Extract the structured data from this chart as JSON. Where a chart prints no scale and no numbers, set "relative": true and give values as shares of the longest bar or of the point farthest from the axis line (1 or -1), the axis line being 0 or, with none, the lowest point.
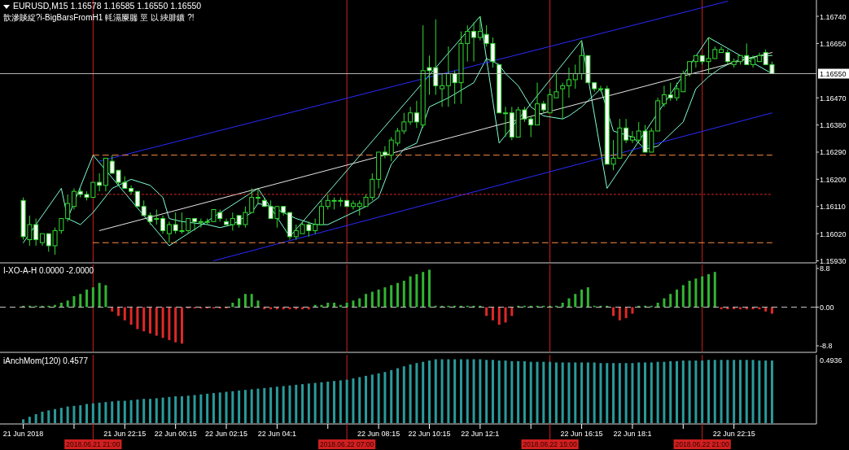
{
  "chart_data": [
    {
      "type": "candlestick",
      "title": "EURUSD,M15 1.16578 1.16585 1.16550 1.16550",
      "subtitle": "歆滲賧綻?i-BigBarsFromH1 軞滆屪腨 巠 以 綊腓鑛 ?!",
      "tick_labels": "y",
      "xlim": [
        "2018-06-21T17:20",
        "2018-06-23T01:30"
      ],
      "ylim": [
        1.15926,
        1.16794
      ],
      "yticks": [
        {
          "value": 1.1674,
          "label": "1.16740"
        },
        {
          "value": 1.1665,
          "label": "1.16650"
        },
        {
          "value": 1.1647,
          "label": "1.16470"
        },
        {
          "value": 1.1638,
          "label": "1.16380"
        },
        {
          "value": 1.1629,
          "label": "1.16290"
        },
        {
          "value": 1.162,
          "label": "1.16200"
        },
        {
          "value": 1.1611,
          "label": "1.16110"
        },
        {
          "value": 1.1602,
          "label": "1.16020"
        },
        {
          "value": 1.1593,
          "label": "1.15930"
        }
      ],
      "x": [
        "2018-06-21T18:15",
        "2018-06-21T18:30",
        "2018-06-21T18:45",
        "2018-06-21T19:00",
        "2018-06-21T19:15",
        "2018-06-21T19:30",
        "2018-06-21T19:45",
        "2018-06-21T20:00",
        "2018-06-21T20:15",
        "2018-06-21T20:30",
        "2018-06-21T20:45",
        "2018-06-21T21:00",
        "2018-06-21T21:15",
        "2018-06-21T21:30",
        "2018-06-21T21:45",
        "2018-06-21T22:00",
        "2018-06-21T22:15",
        "2018-06-21T22:30",
        "2018-06-21T22:45",
        "2018-06-21T23:00",
        "2018-06-21T23:15",
        "2018-06-21T23:30",
        "2018-06-21T23:45",
        "2018-06-22T00:00",
        "2018-06-22T00:15",
        "2018-06-22T00:30",
        "2018-06-22T00:45",
        "2018-06-22T01:00",
        "2018-06-22T01:15",
        "2018-06-22T01:30",
        "2018-06-22T01:45",
        "2018-06-22T02:00",
        "2018-06-22T02:15",
        "2018-06-22T02:30",
        "2018-06-22T02:45",
        "2018-06-22T03:00",
        "2018-06-22T03:15",
        "2018-06-22T03:30",
        "2018-06-22T03:45",
        "2018-06-22T04:00",
        "2018-06-22T04:15",
        "2018-06-22T04:30",
        "2018-06-22T04:45",
        "2018-06-22T05:00",
        "2018-06-22T05:15",
        "2018-06-22T05:30",
        "2018-06-22T05:45",
        "2018-06-22T06:00",
        "2018-06-22T06:15",
        "2018-06-22T06:30",
        "2018-06-22T06:45",
        "2018-06-22T07:00",
        "2018-06-22T07:15",
        "2018-06-22T07:30",
        "2018-06-22T07:45",
        "2018-06-22T08:00",
        "2018-06-22T08:15",
        "2018-06-22T08:30",
        "2018-06-22T08:45",
        "2018-06-22T09:00",
        "2018-06-22T09:15",
        "2018-06-22T09:30",
        "2018-06-22T09:45",
        "2018-06-22T10:00",
        "2018-06-22T10:15",
        "2018-06-22T10:30",
        "2018-06-22T10:45",
        "2018-06-22T11:00",
        "2018-06-22T11:15",
        "2018-06-22T11:30",
        "2018-06-22T11:45",
        "2018-06-22T12:00",
        "2018-06-22T12:15",
        "2018-06-22T12:30",
        "2018-06-22T12:45",
        "2018-06-22T13:00",
        "2018-06-22T13:15",
        "2018-06-22T13:30",
        "2018-06-22T13:45",
        "2018-06-22T14:00",
        "2018-06-22T14:15",
        "2018-06-22T14:30",
        "2018-06-22T14:45",
        "2018-06-22T15:00",
        "2018-06-22T15:15",
        "2018-06-22T15:30",
        "2018-06-22T15:45",
        "2018-06-22T16:00",
        "2018-06-22T16:15",
        "2018-06-22T16:30",
        "2018-06-22T16:45",
        "2018-06-22T17:00",
        "2018-06-22T17:15",
        "2018-06-22T17:30",
        "2018-06-22T17:45",
        "2018-06-22T18:00",
        "2018-06-22T18:15",
        "2018-06-22T18:30",
        "2018-06-22T18:45",
        "2018-06-22T19:00",
        "2018-06-22T19:15",
        "2018-06-22T19:30",
        "2018-06-22T19:45",
        "2018-06-22T20:00",
        "2018-06-22T20:15",
        "2018-06-22T20:30",
        "2018-06-22T20:45",
        "2018-06-22T21:00",
        "2018-06-22T21:15",
        "2018-06-22T21:30",
        "2018-06-22T21:45",
        "2018-06-22T22:00",
        "2018-06-22T22:15",
        "2018-06-22T22:30",
        "2018-06-22T22:45",
        "2018-06-22T23:00",
        "2018-06-22T23:15",
        "2018-06-22T23:30",
        "2018-06-22T23:45"
      ],
      "ohlc": [
        [
          1.1613,
          1.1614,
          1.16,
          1.1601
        ],
        [
          1.16,
          1.1608,
          1.1598,
          1.1605
        ],
        [
          1.1605,
          1.1607,
          1.1598,
          1.16
        ],
        [
          1.1599,
          1.1602,
          1.1598,
          1.1602
        ],
        [
          1.1602,
          1.1602,
          1.1596,
          1.1598
        ],
        [
          1.1598,
          1.1604,
          1.1595,
          1.1603
        ],
        [
          1.1603,
          1.1607,
          1.1602,
          1.1607
        ],
        [
          1.1607,
          1.1615,
          1.1606,
          1.1612
        ],
        [
          1.1611,
          1.1617,
          1.161,
          1.1616
        ],
        [
          1.1616,
          1.1617,
          1.1614,
          1.1615
        ],
        [
          1.1615,
          1.1616,
          1.1613,
          1.1614
        ],
        [
          1.1614,
          1.1619,
          1.1614,
          1.1619
        ],
        [
          1.1619,
          1.1622,
          1.1616,
          1.1618
        ],
        [
          1.1618,
          1.1627,
          1.1616,
          1.1627
        ],
        [
          1.1626,
          1.1628,
          1.1622,
          1.1622
        ],
        [
          1.1623,
          1.1623,
          1.1618,
          1.1619
        ],
        [
          1.1619,
          1.1621,
          1.1617,
          1.1617
        ],
        [
          1.1617,
          1.1618,
          1.1615,
          1.1616
        ],
        [
          1.1616,
          1.1616,
          1.1611,
          1.1611
        ],
        [
          1.1611,
          1.1613,
          1.1608,
          1.1608
        ],
        [
          1.1608,
          1.1609,
          1.1605,
          1.1606
        ],
        [
          1.1607,
          1.161,
          1.1605,
          1.1607
        ],
        [
          1.1607,
          1.1608,
          1.1602,
          1.1603
        ],
        [
          1.1602,
          1.1606,
          1.1599,
          1.1605
        ],
        [
          1.1605,
          1.1609,
          1.1602,
          1.1603
        ],
        [
          1.1603,
          1.1609,
          1.1602,
          1.1603
        ],
        [
          1.1603,
          1.1607,
          1.1602,
          1.1607
        ],
        [
          1.1607,
          1.1607,
          1.1603,
          1.1606
        ],
        [
          1.1606,
          1.1607,
          1.1604,
          1.1606
        ],
        [
          1.1606,
          1.1607,
          1.1605,
          1.1606
        ],
        [
          1.1606,
          1.161,
          1.1606,
          1.161
        ],
        [
          1.1609,
          1.161,
          1.1606,
          1.1607
        ],
        [
          1.1606,
          1.1607,
          1.1605,
          1.1605
        ],
        [
          1.1605,
          1.1609,
          1.1603,
          1.1607
        ],
        [
          1.1608,
          1.1608,
          1.1604,
          1.1605
        ],
        [
          1.1605,
          1.1611,
          1.1604,
          1.1609
        ],
        [
          1.1609,
          1.1617,
          1.1609,
          1.1614
        ],
        [
          1.1614,
          1.1617,
          1.1612,
          1.1614
        ],
        [
          1.1613,
          1.1614,
          1.1611,
          1.1611
        ],
        [
          1.1611,
          1.1613,
          1.1607,
          1.1607
        ],
        [
          1.1607,
          1.1611,
          1.1604,
          1.1611
        ],
        [
          1.1611,
          1.1611,
          1.1608,
          1.1609
        ],
        [
          1.1609,
          1.1609,
          1.16,
          1.1601
        ],
        [
          1.1601,
          1.1605,
          1.16,
          1.1603
        ],
        [
          1.1602,
          1.1606,
          1.1602,
          1.1605
        ],
        [
          1.1605,
          1.1606,
          1.1601,
          1.1603
        ],
        [
          1.1603,
          1.1607,
          1.1602,
          1.1605
        ],
        [
          1.1605,
          1.1613,
          1.1605,
          1.1611
        ],
        [
          1.1611,
          1.1615,
          1.161,
          1.1613
        ],
        [
          1.1613,
          1.1614,
          1.161,
          1.1613
        ],
        [
          1.1613,
          1.1614,
          1.1611,
          1.1613
        ],
        [
          1.1613,
          1.1613,
          1.1611,
          1.1611
        ],
        [
          1.1611,
          1.1613,
          1.161,
          1.1612
        ],
        [
          1.1611,
          1.1613,
          1.1608,
          1.1612
        ],
        [
          1.1611,
          1.1615,
          1.1611,
          1.1614
        ],
        [
          1.1614,
          1.1622,
          1.1613,
          1.162
        ],
        [
          1.162,
          1.1629,
          1.1617,
          1.1629
        ],
        [
          1.1629,
          1.1631,
          1.1627,
          1.1628
        ],
        [
          1.1628,
          1.1634,
          1.1626,
          1.1633
        ],
        [
          1.1632,
          1.1637,
          1.1631,
          1.1636
        ],
        [
          1.1636,
          1.1642,
          1.1635,
          1.1639
        ],
        [
          1.1639,
          1.1644,
          1.1638,
          1.1642
        ],
        [
          1.1642,
          1.1646,
          1.1637,
          1.1639
        ],
        [
          1.1638,
          1.1671,
          1.1637,
          1.1656
        ],
        [
          1.1657,
          1.1661,
          1.1648,
          1.1656
        ],
        [
          1.1657,
          1.1673,
          1.1648,
          1.1651
        ],
        [
          1.165,
          1.1655,
          1.1644,
          1.1651
        ],
        [
          1.1651,
          1.1664,
          1.1644,
          1.1655
        ],
        [
          1.1655,
          1.1656,
          1.1645,
          1.1652
        ],
        [
          1.1652,
          1.1669,
          1.1645,
          1.1665
        ],
        [
          1.1665,
          1.1671,
          1.1659,
          1.1669
        ],
        [
          1.1669,
          1.1672,
          1.1659,
          1.1667
        ],
        [
          1.1667,
          1.1674,
          1.1666,
          1.1669
        ],
        [
          1.1668,
          1.1671,
          1.1664,
          1.1665
        ],
        [
          1.1665,
          1.1667,
          1.1657,
          1.1659
        ],
        [
          1.1658,
          1.1658,
          1.1642,
          1.1642
        ],
        [
          1.1642,
          1.1644,
          1.1634,
          1.1642
        ],
        [
          1.1642,
          1.1644,
          1.1633,
          1.1634
        ],
        [
          1.1634,
          1.1644,
          1.1634,
          1.1643
        ],
        [
          1.1643,
          1.1644,
          1.1639,
          1.164
        ],
        [
          1.164,
          1.1641,
          1.1634,
          1.1638
        ],
        [
          1.1638,
          1.1652,
          1.1638,
          1.1645
        ],
        [
          1.1645,
          1.1646,
          1.1642,
          1.1643
        ],
        [
          1.1642,
          1.165,
          1.1642,
          1.1648
        ],
        [
          1.1647,
          1.1655,
          1.1647,
          1.1649
        ],
        [
          1.165,
          1.1652,
          1.164,
          1.1651
        ],
        [
          1.1651,
          1.1657,
          1.1647,
          1.1653
        ],
        [
          1.1653,
          1.1658,
          1.165,
          1.1655
        ],
        [
          1.1655,
          1.1666,
          1.1653,
          1.1661
        ],
        [
          1.1661,
          1.1661,
          1.1652,
          1.1652
        ],
        [
          1.1652,
          1.1652,
          1.1649,
          1.165
        ],
        [
          1.165,
          1.1651,
          1.1649,
          1.165
        ],
        [
          1.165,
          1.1651,
          1.1625,
          1.1625
        ],
        [
          1.1625,
          1.1633,
          1.1623,
          1.1627
        ],
        [
          1.1627,
          1.164,
          1.1627,
          1.1637
        ],
        [
          1.1637,
          1.164,
          1.1632,
          1.1633
        ],
        [
          1.1633,
          1.1636,
          1.1632,
          1.1634
        ],
        [
          1.1633,
          1.1639,
          1.1632,
          1.1636
        ],
        [
          1.1636,
          1.1638,
          1.1629,
          1.1629
        ],
        [
          1.1629,
          1.1637,
          1.1629,
          1.1636
        ],
        [
          1.1636,
          1.1647,
          1.1636,
          1.1646
        ],
        [
          1.1645,
          1.1651,
          1.1644,
          1.1648
        ],
        [
          1.1648,
          1.1652,
          1.1646,
          1.1647
        ],
        [
          1.1647,
          1.1652,
          1.1646,
          1.165
        ],
        [
          1.1649,
          1.1656,
          1.1649,
          1.1655
        ],
        [
          1.1655,
          1.1659,
          1.1654,
          1.1659
        ],
        [
          1.1659,
          1.1661,
          1.1657,
          1.1661
        ],
        [
          1.1661,
          1.1661,
          1.1658,
          1.1659
        ],
        [
          1.1659,
          1.1667,
          1.1655,
          1.166
        ],
        [
          1.166,
          1.1664,
          1.166,
          1.1663
        ],
        [
          1.1662,
          1.1664,
          1.1662,
          1.1663
        ],
        [
          1.1662,
          1.1663,
          1.1658,
          1.1659
        ],
        [
          1.1658,
          1.166,
          1.1657,
          1.1659
        ],
        [
          1.1659,
          1.1661,
          1.1658,
          1.1661
        ],
        [
          1.1661,
          1.1665,
          1.1658,
          1.1658
        ],
        [
          1.1658,
          1.1661,
          1.1657,
          1.166
        ],
        [
          1.1659,
          1.1662,
          1.1659,
          1.1661
        ],
        [
          1.1662,
          1.1663,
          1.1658,
          1.1658
        ],
        [
          1.1658,
          1.1659,
          1.1655,
          1.1655
        ]
      ],
      "series": [
        {
          "type": "line",
          "color": "#7fffd4",
          "x": [
            "2018-06-21T20:00",
            "2018-06-21T20:30",
            "2018-06-21T21:00",
            "2018-06-21T21:45",
            "2018-06-21T22:15",
            "2018-06-21T22:30",
            "2018-06-21T23:15",
            "2018-06-21T23:45",
            "2018-06-22T00:00",
            "2018-06-22T00:30",
            "2018-06-22T01:30",
            "2018-06-22T02:00",
            "2018-06-22T02:30",
            "2018-06-22T03:15",
            "2018-06-22T03:30",
            "2018-06-22T04:00",
            "2018-06-22T04:30",
            "2018-06-22T05:00",
            "2018-06-22T05:45",
            "2018-06-22T06:15",
            "2018-06-22T07:00",
            "2018-06-22T07:45",
            "2018-06-22T08:15",
            "2018-06-22T08:45",
            "2018-06-22T09:15",
            "2018-06-22T09:45",
            "2018-06-22T10:15",
            "2018-06-22T11:00",
            "2018-06-22T12:00",
            "2018-06-22T12:30",
            "2018-06-22T13:00",
            "2018-06-22T13:15",
            "2018-06-22T13:45",
            "2018-06-22T14:15",
            "2018-06-22T14:45",
            "2018-06-22T15:30",
            "2018-06-22T15:45",
            "2018-06-22T16:15",
            "2018-06-22T16:45",
            "2018-06-22T17:00",
            "2018-06-22T17:30",
            "2018-06-22T18:15",
            "2018-06-22T18:45",
            "2018-06-22T19:15",
            "2018-06-22T19:30",
            "2018-06-22T20:15",
            "2018-06-22T20:45",
            "2018-06-22T21:15",
            "2018-06-22T21:45",
            "2018-06-22T22:15",
            "2018-06-22T23:15",
            "2018-06-22T23:45"
          ],
          "values": [
            1.1607,
            1.1605,
            1.1609,
            1.1617,
            1.1619,
            1.162,
            1.1618,
            1.1614,
            1.1607,
            1.1606,
            1.1605,
            1.1604,
            1.1605,
            1.1609,
            1.1612,
            1.1611,
            1.1609,
            1.1607,
            1.1605,
            1.1605,
            1.1608,
            1.1611,
            1.1614,
            1.1625,
            1.163,
            1.1632,
            1.1644,
            1.1647,
            1.1652,
            1.166,
            1.1658,
            1.1655,
            1.1651,
            1.1644,
            1.1641,
            1.164,
            1.1641,
            1.1644,
            1.1648,
            1.165,
            1.1636,
            1.1634,
            1.163,
            1.1631,
            1.1633,
            1.1639,
            1.165,
            1.1654,
            1.1657,
            1.1659,
            1.1661,
            1.1661
          ]
        },
        {
          "type": "line",
          "color": "#7fffd4",
          "x": [
            "2018-06-21T18:15",
            "2018-06-21T19:45",
            "2018-06-21T20:00",
            "2018-06-21T21:00",
            "2018-06-22T00:00",
            "2018-06-22T03:30",
            "2018-06-22T04:45",
            "2018-06-22T12:15",
            "2018-06-22T13:00",
            "2018-06-22T16:15",
            "2018-06-22T17:15",
            "2018-06-22T21:15",
            "2018-06-22T23:45"
          ],
          "values": [
            1.1599,
            1.1617,
            1.1607,
            1.1628,
            1.1598,
            1.1617,
            1.1601,
            1.1674,
            1.1632,
            1.1666,
            1.1617,
            1.1667,
            1.1655
          ]
        },
        {
          "type": "line",
          "color": "#2a2aff",
          "x": [
            "2018-06-21T21:15",
            "2018-06-22T22:00"
          ],
          "values": [
            1.1626,
            1.1679
          ]
        },
        {
          "type": "line",
          "color": "#e6e6e6",
          "x": [
            "2018-06-21T21:15",
            "2018-06-22T23:45"
          ],
          "values": [
            1.1603,
            1.1662
          ]
        },
        {
          "type": "line",
          "color": "#2a2aff",
          "x": [
            "2018-06-22T01:45",
            "2018-06-22T23:45"
          ],
          "values": [
            1.1593,
            1.1642
          ]
        },
        {
          "type": "line",
          "color": "#ff8c40",
          "line_style": "dashed",
          "x": [
            "2018-06-21T21:00",
            "2018-06-22T23:45"
          ],
          "values": [
            1.1628,
            1.1628
          ]
        },
        {
          "type": "line",
          "color": "#ff8c40",
          "line_style": "dashed",
          "x": [
            "2018-06-21T21:00",
            "2018-06-22T23:45"
          ],
          "values": [
            1.1599,
            1.1599
          ]
        },
        {
          "type": "line",
          "color": "#e02828",
          "line_style": "dotted",
          "x": [
            "2018-06-21T21:00",
            "2018-06-22T23:45"
          ],
          "values": [
            1.1615,
            1.1615
          ]
        }
      ],
      "ref_lines": [
        {
          "axis": "x",
          "value": "2018-06-21T21:00",
          "color": "#d02020"
        },
        {
          "axis": "x",
          "value": "2018-06-22T07:00",
          "color": "#d02020"
        },
        {
          "axis": "x",
          "value": "2018-06-22T15:00",
          "color": "#d02020"
        },
        {
          "axis": "x",
          "value": "2018-06-22T21:00",
          "color": "#d02020"
        },
        {
          "axis": "y",
          "value": 1.1655,
          "label": "1.16550",
          "color": "#b4b4b4"
        }
      ]
    },
    {
      "type": "bar",
      "title": "I-XO-A-H 0.0000 -2.0000",
      "tick_labels": "y",
      "xlim": [
        "2018-06-21T17:20",
        "2018-06-23T01:30"
      ],
      "ylim": [
        -10.1,
        9.7
      ],
      "yticks": [
        8.8,
        {
          "value": 0,
          "label": "0.00"
        },
        -8.8
      ],
      "x": [
        "2018-06-21T18:15",
        "2018-06-21T18:30",
        "2018-06-21T18:45",
        "2018-06-21T19:00",
        "2018-06-21T19:15",
        "2018-06-21T19:30",
        "2018-06-21T19:45",
        "2018-06-21T20:00",
        "2018-06-21T20:15",
        "2018-06-21T20:30",
        "2018-06-21T20:45",
        "2018-06-21T21:00",
        "2018-06-21T21:15",
        "2018-06-21T21:30",
        "2018-06-21T21:45",
        "2018-06-21T22:00",
        "2018-06-21T22:15",
        "2018-06-21T22:30",
        "2018-06-21T22:45",
        "2018-06-21T23:00",
        "2018-06-21T23:15",
        "2018-06-21T23:30",
        "2018-06-21T23:45",
        "2018-06-22T00:00",
        "2018-06-22T00:15",
        "2018-06-22T00:30",
        "2018-06-22T00:45",
        "2018-06-22T01:00",
        "2018-06-22T01:15",
        "2018-06-22T01:30",
        "2018-06-22T01:45",
        "2018-06-22T02:00",
        "2018-06-22T02:15",
        "2018-06-22T02:30",
        "2018-06-22T02:45",
        "2018-06-22T03:00",
        "2018-06-22T03:15",
        "2018-06-22T03:30",
        "2018-06-22T03:45",
        "2018-06-22T04:00",
        "2018-06-22T04:15",
        "2018-06-22T04:30",
        "2018-06-22T04:45",
        "2018-06-22T05:00",
        "2018-06-22T05:15",
        "2018-06-22T05:30",
        "2018-06-22T05:45",
        "2018-06-22T06:00",
        "2018-06-22T06:15",
        "2018-06-22T06:30",
        "2018-06-22T06:45",
        "2018-06-22T07:00",
        "2018-06-22T07:15",
        "2018-06-22T07:30",
        "2018-06-22T07:45",
        "2018-06-22T08:00",
        "2018-06-22T08:15",
        "2018-06-22T08:30",
        "2018-06-22T08:45",
        "2018-06-22T09:00",
        "2018-06-22T09:15",
        "2018-06-22T09:30",
        "2018-06-22T09:45",
        "2018-06-22T10:00",
        "2018-06-22T10:15",
        "2018-06-22T10:30",
        "2018-06-22T10:45",
        "2018-06-22T11:00",
        "2018-06-22T11:15",
        "2018-06-22T11:30",
        "2018-06-22T11:45",
        "2018-06-22T12:00",
        "2018-06-22T12:15",
        "2018-06-22T12:30",
        "2018-06-22T12:45",
        "2018-06-22T13:00",
        "2018-06-22T13:15",
        "2018-06-22T13:30",
        "2018-06-22T13:45",
        "2018-06-22T14:00",
        "2018-06-22T14:15",
        "2018-06-22T14:30",
        "2018-06-22T14:45",
        "2018-06-22T15:00",
        "2018-06-22T15:15",
        "2018-06-22T15:30",
        "2018-06-22T15:45",
        "2018-06-22T16:00",
        "2018-06-22T16:15",
        "2018-06-22T16:30",
        "2018-06-22T16:45",
        "2018-06-22T17:00",
        "2018-06-22T17:15",
        "2018-06-22T17:30",
        "2018-06-22T17:45",
        "2018-06-22T18:00",
        "2018-06-22T18:15",
        "2018-06-22T18:30",
        "2018-06-22T18:45",
        "2018-06-22T19:00",
        "2018-06-22T19:15",
        "2018-06-22T19:30",
        "2018-06-22T19:45",
        "2018-06-22T20:00",
        "2018-06-22T20:15",
        "2018-06-22T20:30",
        "2018-06-22T20:45",
        "2018-06-22T21:00",
        "2018-06-22T21:15",
        "2018-06-22T21:30",
        "2018-06-22T21:45",
        "2018-06-22T22:00",
        "2018-06-22T22:15",
        "2018-06-22T22:30",
        "2018-06-22T22:45",
        "2018-06-22T23:00",
        "2018-06-22T23:15",
        "2018-06-22T23:30",
        "2018-06-22T23:45"
      ],
      "series": [
        {
          "color": "#32b432",
          "values": [
            0.3,
            0.3,
            0.3,
            0.3,
            0.3,
            0.5,
            1,
            1.5,
            2.5,
            3,
            4,
            4.5,
            5.5,
            5,
            null,
            null,
            null,
            null,
            null,
            null,
            null,
            null,
            null,
            null,
            null,
            null,
            null,
            null,
            null,
            null,
            null,
            null,
            null,
            1,
            2,
            3,
            3,
            1.5,
            null,
            null,
            null,
            null,
            null,
            null,
            null,
            null,
            0.5,
            0.5,
            1,
            1,
            0.5,
            1,
            1.5,
            2,
            3,
            3.5,
            4,
            4.5,
            5,
            5.5,
            6,
            7,
            7.5,
            8,
            8.5,
            0.3,
            0.3,
            0.3,
            0.3,
            0.3,
            0.3,
            0.3,
            0.3,
            null,
            null,
            null,
            null,
            null,
            0.3,
            0.3,
            0.3,
            0.3,
            0.3,
            0.3,
            0.3,
            1,
            2,
            3,
            4,
            4.5,
            0.3,
            0.3,
            0.3,
            null,
            null,
            null,
            null,
            0.3,
            0.3,
            0.3,
            1,
            2,
            3,
            4,
            5,
            6,
            6.5,
            7,
            7.5,
            8,
            null,
            null,
            null,
            null,
            null,
            null,
            null,
            null,
            null
          ]
        },
        {
          "color": "#e02828",
          "values": [
            null,
            null,
            null,
            null,
            null,
            null,
            null,
            null,
            null,
            null,
            null,
            null,
            null,
            null,
            -1,
            -2,
            -3,
            -4,
            -5,
            -5.5,
            -6,
            -6.5,
            -7,
            -7.5,
            -8,
            -8.3,
            -0.3,
            -0.3,
            -0.3,
            -0.3,
            -0.3,
            -0.3,
            -0.3,
            null,
            null,
            null,
            null,
            null,
            -0.5,
            -0.5,
            -0.5,
            -0.5,
            -0.5,
            -0.5,
            -0.5,
            -0.5,
            null,
            null,
            null,
            null,
            null,
            null,
            null,
            null,
            null,
            null,
            null,
            null,
            null,
            null,
            null,
            null,
            null,
            null,
            null,
            null,
            null,
            null,
            null,
            null,
            null,
            null,
            null,
            -2,
            -3,
            -4,
            -3.5,
            -2,
            null,
            null,
            null,
            null,
            null,
            null,
            null,
            null,
            null,
            null,
            null,
            null,
            null,
            null,
            null,
            -2,
            -3,
            -2.5,
            -1.5,
            null,
            null,
            null,
            null,
            null,
            null,
            null,
            null,
            null,
            null,
            null,
            null,
            null,
            -0.5,
            -0.5,
            -0.5,
            -0.5,
            -0.5,
            -0.5,
            -0.5,
            -1,
            -1.5
          ]
        }
      ],
      "ref_lines": [
        {
          "axis": "x",
          "value": "2018-06-21T21:00",
          "color": "#d02020"
        },
        {
          "axis": "x",
          "value": "2018-06-22T07:00",
          "color": "#d02020"
        },
        {
          "axis": "x",
          "value": "2018-06-22T15:00",
          "color": "#d02020"
        },
        {
          "axis": "x",
          "value": "2018-06-22T21:00",
          "color": "#d02020"
        },
        {
          "axis": "y",
          "value": 0,
          "color": "#c8c8c8",
          "line_style": "dashed"
        }
      ]
    },
    {
      "type": "bar",
      "title": "iAnchMom(120) 0.4577",
      "relative": true,
      "color": "#2a9a9a",
      "annotations": [
        "0.4936"
      ],
      "xlim": [
        "2018-06-21T17:20",
        "2018-06-23T01:30"
      ],
      "xticks": [
        {
          "value": "2018-06-21T18:15",
          "label": "21 Jun 2018"
        },
        {
          "value": "2018-06-21T20:15",
          "label": null
        },
        {
          "value": "2018-06-21T22:15",
          "label": "21 Jun 22:15"
        },
        {
          "value": "2018-06-22T00:15",
          "label": "22 Jun 00:15"
        },
        {
          "value": "2018-06-22T02:15",
          "label": "22 Jun 02:15"
        },
        {
          "value": "2018-06-22T04:15",
          "label": "22 Jun 04:1"
        },
        {
          "value": "2018-06-22T06:15",
          "label": null
        },
        {
          "value": "2018-06-22T08:15",
          "label": "22 Jun 08:15"
        },
        {
          "value": "2018-06-22T10:15",
          "label": "22 Jun 10:15"
        },
        {
          "value": "2018-06-22T12:15",
          "label": "22 Jun 12:1"
        },
        {
          "value": "2018-06-22T14:15",
          "label": null
        },
        {
          "value": "2018-06-22T16:15",
          "label": "22 Jun 16:15"
        },
        {
          "value": "2018-06-22T18:15",
          "label": "22 Jun 18:1"
        },
        {
          "value": "2018-06-22T20:15",
          "label": null
        },
        {
          "value": "2018-06-22T22:15",
          "label": "22 Jun 22:15"
        }
      ],
      "x": [
        "2018-06-21T18:15",
        "2018-06-21T18:30",
        "2018-06-21T18:45",
        "2018-06-21T19:00",
        "2018-06-21T19:15",
        "2018-06-21T19:30",
        "2018-06-21T19:45",
        "2018-06-21T20:00",
        "2018-06-21T20:15",
        "2018-06-21T20:30",
        "2018-06-21T20:45",
        "2018-06-21T21:00",
        "2018-06-21T21:15",
        "2018-06-21T21:30",
        "2018-06-21T21:45",
        "2018-06-21T22:00",
        "2018-06-21T22:15",
        "2018-06-21T22:30",
        "2018-06-21T22:45",
        "2018-06-21T23:00",
        "2018-06-21T23:15",
        "2018-06-21T23:30",
        "2018-06-21T23:45",
        "2018-06-22T00:00",
        "2018-06-22T00:15",
        "2018-06-22T00:30",
        "2018-06-22T00:45",
        "2018-06-22T01:00",
        "2018-06-22T01:15",
        "2018-06-22T01:30",
        "2018-06-22T01:45",
        "2018-06-22T02:00",
        "2018-06-22T02:15",
        "2018-06-22T02:30",
        "2018-06-22T02:45",
        "2018-06-22T03:00",
        "2018-06-22T03:15",
        "2018-06-22T03:30",
        "2018-06-22T03:45",
        "2018-06-22T04:00",
        "2018-06-22T04:15",
        "2018-06-22T04:30",
        "2018-06-22T04:45",
        "2018-06-22T05:00",
        "2018-06-22T05:15",
        "2018-06-22T05:30",
        "2018-06-22T05:45",
        "2018-06-22T06:00",
        "2018-06-22T06:15",
        "2018-06-22T06:30",
        "2018-06-22T06:45",
        "2018-06-22T07:00",
        "2018-06-22T07:15",
        "2018-06-22T07:30",
        "2018-06-22T07:45",
        "2018-06-22T08:00",
        "2018-06-22T08:15",
        "2018-06-22T08:30",
        "2018-06-22T08:45",
        "2018-06-22T09:00",
        "2018-06-22T09:15",
        "2018-06-22T09:30",
        "2018-06-22T09:45",
        "2018-06-22T10:00",
        "2018-06-22T10:15",
        "2018-06-22T10:30",
        "2018-06-22T10:45",
        "2018-06-22T11:00",
        "2018-06-22T11:15",
        "2018-06-22T11:30",
        "2018-06-22T11:45",
        "2018-06-22T12:00",
        "2018-06-22T12:15",
        "2018-06-22T12:30",
        "2018-06-22T12:45",
        "2018-06-22T13:00",
        "2018-06-22T13:15",
        "2018-06-22T13:30",
        "2018-06-22T13:45",
        "2018-06-22T14:00",
        "2018-06-22T14:15",
        "2018-06-22T14:30",
        "2018-06-22T14:45",
        "2018-06-22T15:00",
        "2018-06-22T15:15",
        "2018-06-22T15:30",
        "2018-06-22T15:45",
        "2018-06-22T16:00",
        "2018-06-22T16:15",
        "2018-06-22T16:30",
        "2018-06-22T16:45",
        "2018-06-22T17:00",
        "2018-06-22T17:15",
        "2018-06-22T17:30",
        "2018-06-22T17:45",
        "2018-06-22T18:00",
        "2018-06-22T18:15",
        "2018-06-22T18:30",
        "2018-06-22T18:45",
        "2018-06-22T19:00",
        "2018-06-22T19:15",
        "2018-06-22T19:30",
        "2018-06-22T19:45",
        "2018-06-22T20:00",
        "2018-06-22T20:15",
        "2018-06-22T20:30",
        "2018-06-22T20:45",
        "2018-06-22T21:00",
        "2018-06-22T21:15",
        "2018-06-22T21:30",
        "2018-06-22T21:45",
        "2018-06-22T22:00",
        "2018-06-22T22:15",
        "2018-06-22T22:30",
        "2018-06-22T22:45",
        "2018-06-22T23:00",
        "2018-06-22T23:15",
        "2018-06-22T23:30",
        "2018-06-22T23:45"
      ],
      "values": [
        0.06,
        0.1,
        0.14,
        0.18,
        0.2,
        0.22,
        0.24,
        0.26,
        0.27,
        0.28,
        0.3,
        0.31,
        0.32,
        0.33,
        0.34,
        0.35,
        0.35,
        0.36,
        0.37,
        0.38,
        0.38,
        0.39,
        0.4,
        0.41,
        0.42,
        0.42,
        0.43,
        0.44,
        0.45,
        0.46,
        0.47,
        0.48,
        0.49,
        0.5,
        0.51,
        0.52,
        0.53,
        0.54,
        0.55,
        0.56,
        0.57,
        0.58,
        0.59,
        0.6,
        0.61,
        0.62,
        0.63,
        0.64,
        0.65,
        0.66,
        0.67,
        0.68,
        0.7,
        0.72,
        0.74,
        0.76,
        0.78,
        0.8,
        0.83,
        0.86,
        0.89,
        0.92,
        0.94,
        0.96,
        0.98,
        1,
        1,
        1,
        1,
        1,
        1,
        1,
        1,
        0.99,
        0.99,
        0.98,
        0.98,
        0.97,
        0.97,
        0.97,
        0.96,
        0.96,
        0.96,
        0.96,
        0.95,
        0.95,
        0.95,
        0.95,
        0.95,
        0.95,
        0.95,
        0.94,
        0.94,
        0.94,
        0.94,
        0.94,
        0.94,
        0.95,
        0.95,
        0.95,
        0.96,
        0.96,
        0.97,
        0.97,
        0.98,
        0.98,
        0.98,
        0.98,
        0.99,
        0.99,
        0.99,
        0.99,
        0.99,
        0.99,
        0.99,
        0.99,
        0.98,
        0.98,
        0.98
      ],
      "ref_lines": [
        {
          "axis": "x",
          "value": "2018-06-21T21:00",
          "label": "2018.06.21 21:00",
          "color": "#d02020"
        },
        {
          "axis": "x",
          "value": "2018-06-22T07:00",
          "label": "2018.06.22 07:00",
          "color": "#d02020"
        },
        {
          "axis": "x",
          "value": "2018-06-22T15:00",
          "label": "2018.06.22 15:00",
          "color": "#d02020"
        },
        {
          "axis": "x",
          "value": "2018-06-22T21:00",
          "label": "2018.06.22 21:00",
          "color": "#d02020"
        }
      ]
    }
  ]
}
